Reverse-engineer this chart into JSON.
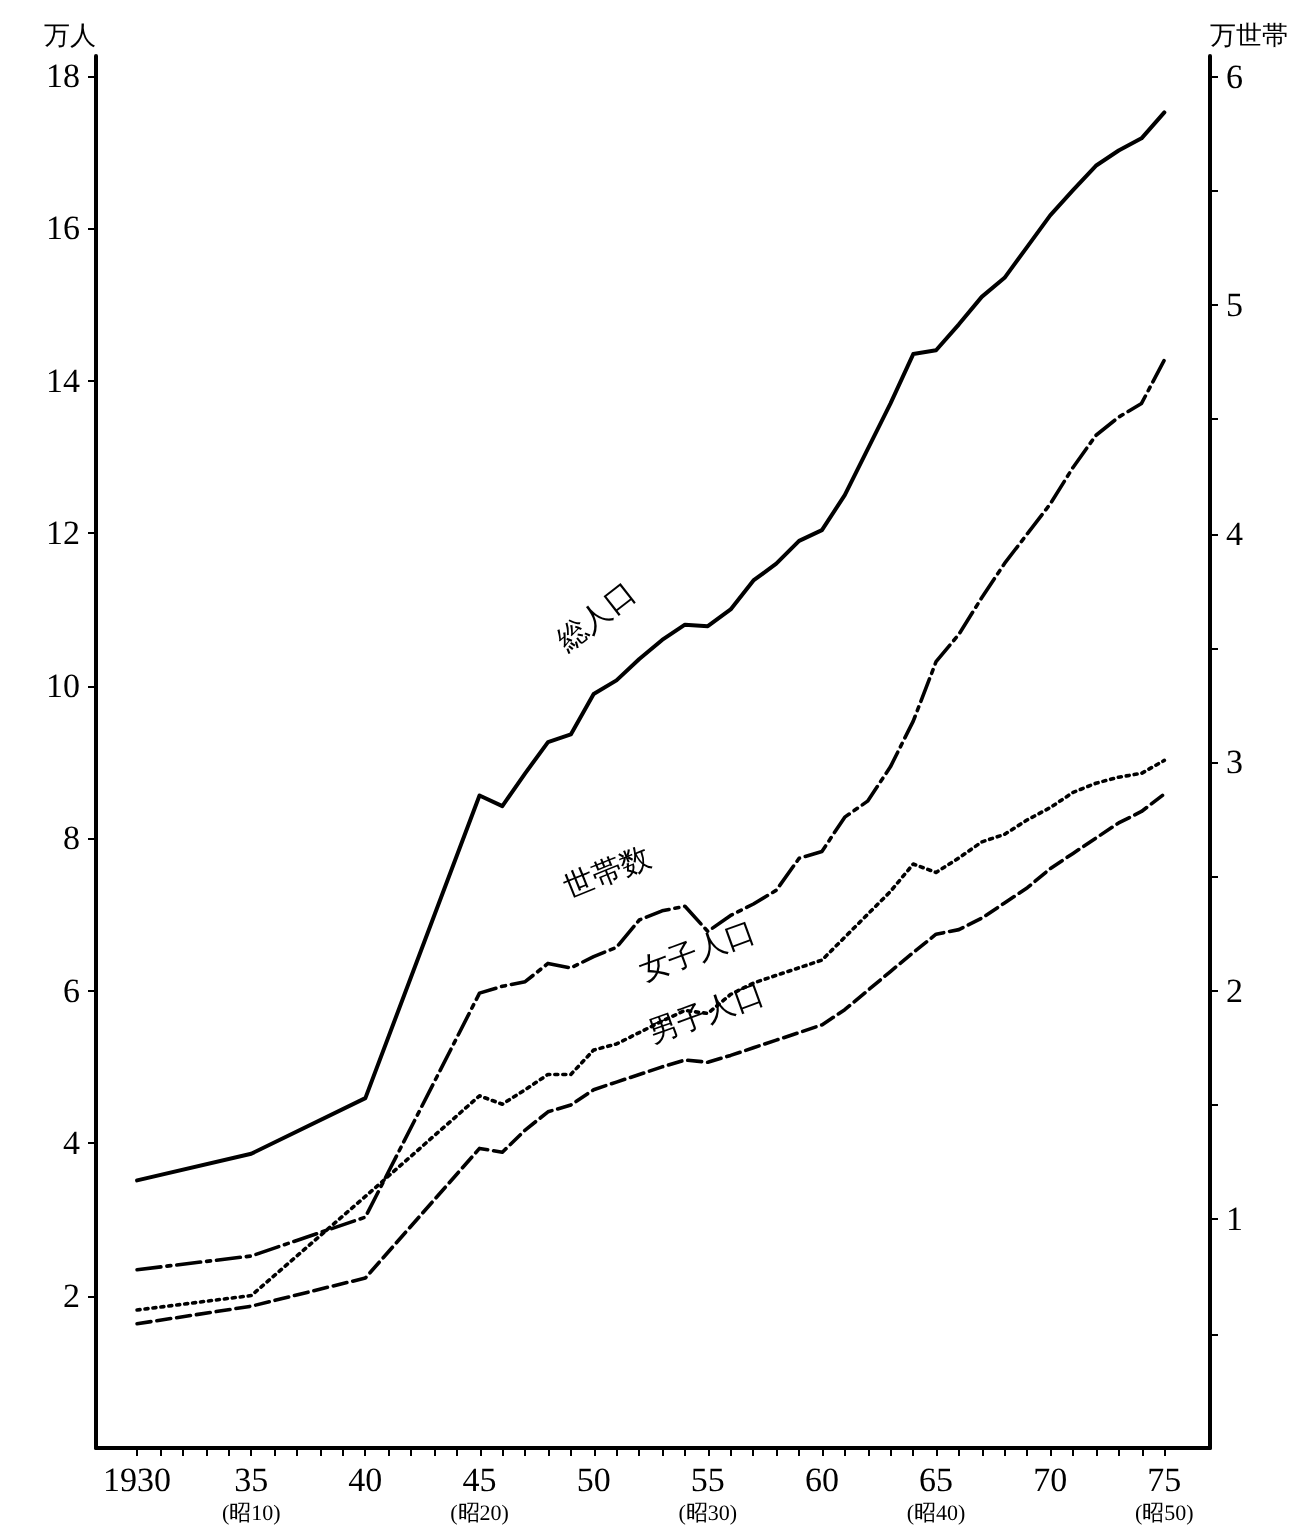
{
  "chart_data": {
    "type": "line",
    "ylabel": "万人",
    "y2label": "万世帯",
    "grid": false,
    "legend": false,
    "marker": "none",
    "xlim": [
      1928.2,
      1977
    ],
    "ylim": [
      0,
      18.26
    ],
    "y2lim": [
      0,
      6.09
    ],
    "xticks": [
      {
        "value": 1930,
        "label": "1930"
      },
      {
        "value": 1931,
        "label": null
      },
      {
        "value": 1932,
        "label": null
      },
      {
        "value": 1933,
        "label": null
      },
      {
        "value": 1934,
        "label": null
      },
      {
        "value": 1935,
        "label": "35\n(昭10)"
      },
      {
        "value": 1936,
        "label": null
      },
      {
        "value": 1937,
        "label": null
      },
      {
        "value": 1938,
        "label": null
      },
      {
        "value": 1939,
        "label": null
      },
      {
        "value": 1940,
        "label": "40"
      },
      {
        "value": 1941,
        "label": null
      },
      {
        "value": 1942,
        "label": null
      },
      {
        "value": 1943,
        "label": null
      },
      {
        "value": 1944,
        "label": null
      },
      {
        "value": 1945,
        "label": "45\n(昭20)"
      },
      {
        "value": 1946,
        "label": null
      },
      {
        "value": 1947,
        "label": null
      },
      {
        "value": 1948,
        "label": null
      },
      {
        "value": 1949,
        "label": null
      },
      {
        "value": 1950,
        "label": "50"
      },
      {
        "value": 1951,
        "label": null
      },
      {
        "value": 1952,
        "label": null
      },
      {
        "value": 1953,
        "label": null
      },
      {
        "value": 1954,
        "label": null
      },
      {
        "value": 1955,
        "label": "55\n(昭30)"
      },
      {
        "value": 1956,
        "label": null
      },
      {
        "value": 1957,
        "label": null
      },
      {
        "value": 1958,
        "label": null
      },
      {
        "value": 1959,
        "label": null
      },
      {
        "value": 1960,
        "label": "60"
      },
      {
        "value": 1961,
        "label": null
      },
      {
        "value": 1962,
        "label": null
      },
      {
        "value": 1963,
        "label": null
      },
      {
        "value": 1964,
        "label": null
      },
      {
        "value": 1965,
        "label": "65\n(昭40)"
      },
      {
        "value": 1966,
        "label": null
      },
      {
        "value": 1967,
        "label": null
      },
      {
        "value": 1968,
        "label": null
      },
      {
        "value": 1969,
        "label": null
      },
      {
        "value": 1970,
        "label": "70"
      },
      {
        "value": 1971,
        "label": null
      },
      {
        "value": 1972,
        "label": null
      },
      {
        "value": 1973,
        "label": null
      },
      {
        "value": 1974,
        "label": null
      },
      {
        "value": 1975,
        "label": "75\n(昭50)"
      }
    ],
    "yticks": [
      2,
      4,
      6,
      8,
      10,
      12,
      14,
      16,
      18
    ],
    "y2ticks": [
      {
        "value": 0.5,
        "label": null
      },
      1,
      {
        "value": 1.5,
        "label": null
      },
      2,
      {
        "value": 2.5,
        "label": null
      },
      3,
      {
        "value": 3.5,
        "label": null
      },
      4,
      {
        "value": 4.5,
        "label": null
      },
      5,
      {
        "value": 5.5,
        "label": null
      },
      6
    ],
    "x": [
      1930,
      1935,
      1940,
      1945,
      1946,
      1947,
      1948,
      1949,
      1950,
      1951,
      1952,
      1953,
      1954,
      1955,
      1956,
      1957,
      1958,
      1959,
      1960,
      1961,
      1962,
      1963,
      1964,
      1965,
      1966,
      1967,
      1968,
      1969,
      1970,
      1971,
      1972,
      1973,
      1974,
      1975
    ],
    "series": [
      {
        "name": "総人口",
        "color": "#000000",
        "line_style": "solid",
        "values": [
          3.51,
          3.86,
          4.59,
          8.56,
          8.42,
          8.85,
          9.26,
          9.36,
          9.89,
          10.07,
          10.35,
          10.6,
          10.8,
          10.78,
          11.0,
          11.38,
          11.6,
          11.9,
          12.04,
          12.5,
          13.1,
          13.7,
          14.35,
          14.4,
          14.74,
          15.1,
          15.35,
          15.76,
          16.17,
          16.5,
          16.82,
          17.02,
          17.18,
          17.52
        ]
      },
      {
        "name": "世帯数",
        "color": "#000000",
        "line_style": "dashed",
        "axis": "y2",
        "values": [
          0.78,
          0.84,
          1.01,
          1.99,
          2.02,
          2.04,
          2.12,
          2.1,
          2.15,
          2.19,
          2.31,
          2.35,
          2.37,
          2.26,
          2.33,
          2.38,
          2.44,
          2.58,
          2.61,
          2.76,
          2.83,
          2.98,
          3.18,
          3.44,
          3.56,
          3.72,
          3.87,
          4.0,
          4.13,
          4.29,
          4.43,
          4.51,
          4.57,
          4.76
        ]
      },
      {
        "name": "女子人口",
        "color": "#000000",
        "line_style": "dotted",
        "values": [
          1.81,
          2.0,
          3.3,
          4.62,
          4.51,
          4.7,
          4.9,
          4.9,
          5.22,
          5.3,
          5.45,
          5.6,
          5.74,
          5.7,
          5.95,
          6.1,
          6.2,
          6.3,
          6.4,
          6.7,
          7.0,
          7.3,
          7.66,
          7.55,
          7.74,
          7.95,
          8.05,
          8.24,
          8.4,
          8.6,
          8.72,
          8.8,
          8.85,
          9.02
        ]
      },
      {
        "name": "男子人口",
        "color": "#000000",
        "line_style": "dashed",
        "values": [
          1.63,
          1.86,
          2.23,
          3.93,
          3.88,
          4.17,
          4.41,
          4.5,
          4.7,
          4.8,
          4.9,
          5.0,
          5.09,
          5.06,
          5.15,
          5.25,
          5.35,
          5.45,
          5.55,
          5.75,
          6.0,
          6.25,
          6.5,
          6.74,
          6.8,
          6.95,
          7.15,
          7.35,
          7.6,
          7.8,
          8.0,
          8.2,
          8.35,
          8.58
        ]
      }
    ]
  }
}
